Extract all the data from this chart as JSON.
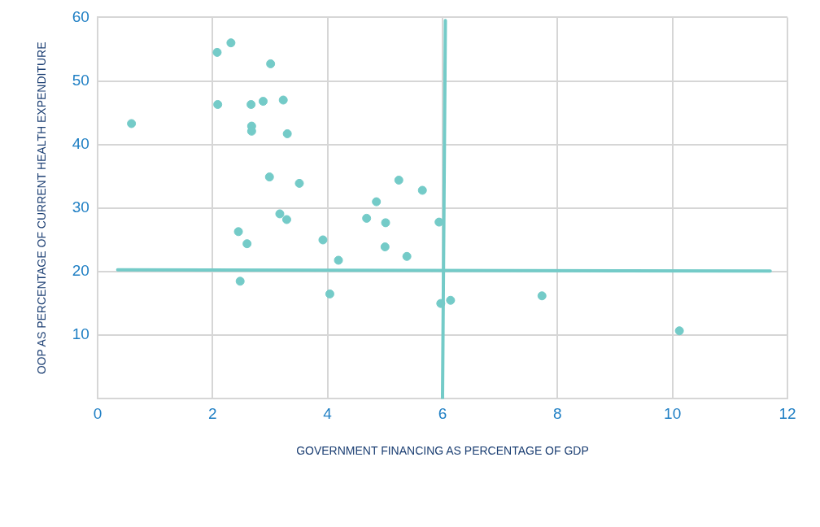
{
  "chart_data": {
    "type": "scatter",
    "xlabel": "GOVERNMENT FINANCING AS PERCENTAGE OF GDP",
    "ylabel": "OOP AS PERCENTAGE OF CURRENT HEALTH EXPENDITURE",
    "xlim": [
      0,
      12
    ],
    "xticks": [
      0,
      2,
      4,
      6,
      8,
      10,
      12
    ],
    "ylim": [
      0,
      60
    ],
    "yticks": [
      10,
      20,
      30,
      40,
      50,
      60
    ],
    "grid": true,
    "legend": false,
    "marker": "circle",
    "series": [
      {
        "color": "#74cbc8",
        "x": [
          0.59,
          2.08,
          2.32,
          2.09,
          3.01,
          2.67,
          2.88,
          3.23,
          2.68,
          2.68,
          3.3,
          2.99,
          3.51,
          5.24,
          5.65,
          4.85,
          3.17,
          3.29,
          4.68,
          5.01,
          5.94,
          2.45,
          2.6,
          3.92,
          5.0,
          5.38,
          4.19,
          2.48,
          4.04,
          5.97,
          6.14,
          7.73,
          10.12
        ],
        "values": [
          43.3,
          54.5,
          56.0,
          46.3,
          52.7,
          46.3,
          46.8,
          47.0,
          42.9,
          42.1,
          41.7,
          34.9,
          33.9,
          34.4,
          32.8,
          31.0,
          29.1,
          28.2,
          28.4,
          27.7,
          27.8,
          26.3,
          24.4,
          25.0,
          23.9,
          22.4,
          21.8,
          18.5,
          16.5,
          15.0,
          15.5,
          16.2,
          10.7
        ]
      },
      {
        "type": "line",
        "marker": "none",
        "color": "#74cbc8",
        "x": [
          0.35,
          11.7
        ],
        "values": [
          20.3,
          20.1
        ]
      },
      {
        "type": "line",
        "marker": "none",
        "color": "#74cbc8",
        "x": [
          6.05,
          6.0
        ],
        "values": [
          59.5,
          0
        ]
      }
    ]
  }
}
